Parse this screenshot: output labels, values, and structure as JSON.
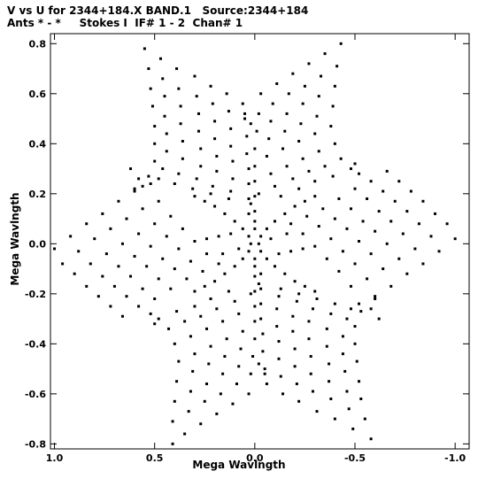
{
  "title_line1": "V vs U for 2344+184.X BAND.1   Source:2344+184",
  "title_line2": "Ants * - *     Stokes I  IF# 1 - 2  Chan# 1",
  "chart_data": {
    "type": "scatter",
    "xlabel": "Mega Wavlngth",
    "ylabel": "Mega Wavlngth",
    "xlim": [
      1.02,
      -1.07
    ],
    "ylim": [
      -0.82,
      0.84
    ],
    "x_reversed": true,
    "xticks": [
      1.0,
      0.5,
      0.0,
      -0.5,
      -1.0
    ],
    "xtick_labels": [
      "1.0",
      "0.5",
      "0.0",
      "-0.5",
      "-1.0"
    ],
    "yticks": [
      0.8,
      0.6,
      0.4,
      0.2,
      0.0,
      -0.2,
      -0.4,
      -0.6,
      -0.8
    ],
    "ytick_labels": [
      "0.8",
      "0.6",
      "0.4",
      "0.2",
      "0.0",
      "-0.2",
      "-0.4",
      "-0.6",
      "-0.8"
    ],
    "grid": false,
    "legend": "none",
    "marker_color": "#000000",
    "point_count_approx": 620,
    "note_pattern": "six-armed star uv-coverage symmetric about origin; tracks at ~0, ±60, ±120 deg; extreme points at (0.55,0.78),(-0.43,0.8),(1.0,-0.02),(-1.0,0.02),(0.41,-0.8),(-0.58,-0.78)",
    "points": [
      [
        0.55,
        0.78
      ],
      [
        0.53,
        0.7
      ],
      [
        0.52,
        0.62
      ],
      [
        0.51,
        0.55
      ],
      [
        0.5,
        0.47
      ],
      [
        0.5,
        0.4
      ],
      [
        0.5,
        0.33
      ],
      [
        0.53,
        0.27
      ],
      [
        0.56,
        0.23
      ],
      [
        0.47,
        0.74
      ],
      [
        0.46,
        0.66
      ],
      [
        0.45,
        0.59
      ],
      [
        0.45,
        0.51
      ],
      [
        0.44,
        0.44
      ],
      [
        0.44,
        0.37
      ],
      [
        0.46,
        0.3
      ],
      [
        0.48,
        0.26
      ],
      [
        0.39,
        0.7
      ],
      [
        0.38,
        0.62
      ],
      [
        0.37,
        0.55
      ],
      [
        0.37,
        0.48
      ],
      [
        0.36,
        0.41
      ],
      [
        0.36,
        0.34
      ],
      [
        0.38,
        0.28
      ],
      [
        0.4,
        0.24
      ],
      [
        0.3,
        0.67
      ],
      [
        0.29,
        0.59
      ],
      [
        0.28,
        0.52
      ],
      [
        0.28,
        0.45
      ],
      [
        0.27,
        0.38
      ],
      [
        0.27,
        0.31
      ],
      [
        0.29,
        0.26
      ],
      [
        0.31,
        0.22
      ],
      [
        0.22,
        0.63
      ],
      [
        0.21,
        0.56
      ],
      [
        0.2,
        0.49
      ],
      [
        0.2,
        0.42
      ],
      [
        0.19,
        0.35
      ],
      [
        0.19,
        0.29
      ],
      [
        0.21,
        0.23
      ],
      [
        0.22,
        0.2
      ],
      [
        0.14,
        0.6
      ],
      [
        0.13,
        0.53
      ],
      [
        0.12,
        0.46
      ],
      [
        0.12,
        0.39
      ],
      [
        0.11,
        0.33
      ],
      [
        0.11,
        0.26
      ],
      [
        0.12,
        0.21
      ],
      [
        0.13,
        0.18
      ],
      [
        0.06,
        0.56
      ],
      [
        0.05,
        0.5
      ],
      [
        0.04,
        0.43
      ],
      [
        0.04,
        0.36
      ],
      [
        0.03,
        0.3
      ],
      [
        0.03,
        0.24
      ],
      [
        0.03,
        0.18
      ],
      [
        0.03,
        0.12
      ],
      [
        -0.43,
        0.8
      ],
      [
        -0.41,
        0.71
      ],
      [
        -0.4,
        0.63
      ],
      [
        -0.39,
        0.55
      ],
      [
        -0.38,
        0.47
      ],
      [
        -0.4,
        0.4
      ],
      [
        -0.43,
        0.34
      ],
      [
        -0.48,
        0.3
      ],
      [
        -0.35,
        0.76
      ],
      [
        -0.33,
        0.67
      ],
      [
        -0.32,
        0.59
      ],
      [
        -0.31,
        0.51
      ],
      [
        -0.3,
        0.44
      ],
      [
        -0.32,
        0.37
      ],
      [
        -0.35,
        0.31
      ],
      [
        -0.39,
        0.27
      ],
      [
        -0.27,
        0.72
      ],
      [
        -0.25,
        0.63
      ],
      [
        -0.24,
        0.56
      ],
      [
        -0.23,
        0.48
      ],
      [
        -0.22,
        0.41
      ],
      [
        -0.24,
        0.34
      ],
      [
        -0.27,
        0.29
      ],
      [
        -0.3,
        0.25
      ],
      [
        -0.19,
        0.68
      ],
      [
        -0.17,
        0.6
      ],
      [
        -0.16,
        0.52
      ],
      [
        -0.15,
        0.45
      ],
      [
        -0.14,
        0.38
      ],
      [
        -0.16,
        0.31
      ],
      [
        -0.19,
        0.26
      ],
      [
        -0.22,
        0.22
      ],
      [
        -0.11,
        0.64
      ],
      [
        -0.09,
        0.56
      ],
      [
        -0.08,
        0.49
      ],
      [
        -0.07,
        0.42
      ],
      [
        -0.06,
        0.35
      ],
      [
        -0.08,
        0.28
      ],
      [
        -0.1,
        0.23
      ],
      [
        -0.13,
        0.19
      ],
      [
        -0.03,
        0.6
      ],
      [
        -0.02,
        0.52
      ],
      [
        -0.01,
        0.45
      ],
      [
        0.0,
        0.38
      ],
      [
        0.0,
        0.31
      ],
      [
        0.0,
        0.25
      ],
      [
        0.0,
        0.19
      ],
      [
        0.0,
        0.13
      ],
      [
        1.0,
        -0.02
      ],
      [
        0.92,
        0.03
      ],
      [
        0.84,
        0.08
      ],
      [
        0.76,
        0.12
      ],
      [
        0.68,
        0.17
      ],
      [
        0.6,
        0.21
      ],
      [
        0.52,
        0.24
      ],
      [
        0.96,
        -0.08
      ],
      [
        0.88,
        -0.03
      ],
      [
        0.8,
        0.02
      ],
      [
        0.72,
        0.06
      ],
      [
        0.64,
        0.1
      ],
      [
        0.56,
        0.14
      ],
      [
        0.48,
        0.17
      ],
      [
        0.9,
        -0.12
      ],
      [
        0.82,
        -0.08
      ],
      [
        0.74,
        -0.04
      ],
      [
        0.66,
        0.0
      ],
      [
        0.58,
        0.04
      ],
      [
        0.5,
        0.08
      ],
      [
        0.42,
        0.11
      ],
      [
        0.84,
        -0.17
      ],
      [
        0.76,
        -0.13
      ],
      [
        0.68,
        -0.09
      ],
      [
        0.6,
        -0.05
      ],
      [
        0.52,
        -0.01
      ],
      [
        0.44,
        0.03
      ],
      [
        0.36,
        0.06
      ],
      [
        0.78,
        -0.21
      ],
      [
        0.7,
        -0.17
      ],
      [
        0.62,
        -0.13
      ],
      [
        0.54,
        -0.09
      ],
      [
        0.46,
        -0.06
      ],
      [
        0.38,
        -0.02
      ],
      [
        0.3,
        0.01
      ],
      [
        0.72,
        -0.25
      ],
      [
        0.64,
        -0.21
      ],
      [
        0.56,
        -0.18
      ],
      [
        0.48,
        -0.14
      ],
      [
        0.4,
        -0.1
      ],
      [
        0.32,
        -0.07
      ],
      [
        0.24,
        -0.04
      ],
      [
        0.66,
        -0.29
      ],
      [
        0.58,
        -0.25
      ],
      [
        0.5,
        -0.22
      ],
      [
        0.42,
        -0.18
      ],
      [
        0.34,
        -0.14
      ],
      [
        0.26,
        -0.11
      ],
      [
        0.18,
        -0.08
      ],
      [
        -1.0,
        0.02
      ],
      [
        -0.92,
        -0.03
      ],
      [
        -0.84,
        -0.08
      ],
      [
        -0.76,
        -0.12
      ],
      [
        -0.68,
        -0.17
      ],
      [
        -0.6,
        -0.21
      ],
      [
        -0.52,
        -0.24
      ],
      [
        -0.96,
        0.08
      ],
      [
        -0.88,
        0.03
      ],
      [
        -0.8,
        -0.02
      ],
      [
        -0.72,
        -0.06
      ],
      [
        -0.64,
        -0.1
      ],
      [
        -0.56,
        -0.14
      ],
      [
        -0.48,
        -0.17
      ],
      [
        -0.9,
        0.12
      ],
      [
        -0.82,
        0.08
      ],
      [
        -0.74,
        0.04
      ],
      [
        -0.66,
        0.0
      ],
      [
        -0.58,
        -0.04
      ],
      [
        -0.5,
        -0.08
      ],
      [
        -0.42,
        -0.11
      ],
      [
        -0.84,
        0.17
      ],
      [
        -0.76,
        0.13
      ],
      [
        -0.68,
        0.09
      ],
      [
        -0.6,
        0.05
      ],
      [
        -0.52,
        0.01
      ],
      [
        -0.44,
        -0.03
      ],
      [
        -0.36,
        -0.06
      ],
      [
        -0.78,
        0.21
      ],
      [
        -0.7,
        0.17
      ],
      [
        -0.62,
        0.13
      ],
      [
        -0.54,
        0.09
      ],
      [
        -0.46,
        0.06
      ],
      [
        -0.38,
        0.02
      ],
      [
        -0.3,
        -0.01
      ],
      [
        -0.72,
        0.25
      ],
      [
        -0.64,
        0.21
      ],
      [
        -0.56,
        0.18
      ],
      [
        -0.48,
        0.14
      ],
      [
        -0.4,
        0.1
      ],
      [
        -0.32,
        0.07
      ],
      [
        -0.24,
        0.04
      ],
      [
        -0.66,
        0.29
      ],
      [
        -0.58,
        0.25
      ],
      [
        -0.5,
        0.22
      ],
      [
        -0.42,
        0.18
      ],
      [
        -0.34,
        0.14
      ],
      [
        -0.26,
        0.11
      ],
      [
        -0.18,
        0.08
      ],
      [
        0.41,
        -0.8
      ],
      [
        0.41,
        -0.71
      ],
      [
        0.4,
        -0.63
      ],
      [
        0.39,
        -0.55
      ],
      [
        0.38,
        -0.47
      ],
      [
        0.4,
        -0.4
      ],
      [
        0.43,
        -0.34
      ],
      [
        0.48,
        -0.3
      ],
      [
        0.35,
        -0.76
      ],
      [
        0.33,
        -0.67
      ],
      [
        0.32,
        -0.59
      ],
      [
        0.31,
        -0.51
      ],
      [
        0.3,
        -0.44
      ],
      [
        0.32,
        -0.37
      ],
      [
        0.35,
        -0.31
      ],
      [
        0.39,
        -0.27
      ],
      [
        0.27,
        -0.72
      ],
      [
        0.25,
        -0.63
      ],
      [
        0.24,
        -0.56
      ],
      [
        0.23,
        -0.48
      ],
      [
        0.22,
        -0.41
      ],
      [
        0.24,
        -0.34
      ],
      [
        0.27,
        -0.29
      ],
      [
        0.3,
        -0.25
      ],
      [
        0.19,
        -0.68
      ],
      [
        0.17,
        -0.6
      ],
      [
        0.16,
        -0.52
      ],
      [
        0.15,
        -0.45
      ],
      [
        0.14,
        -0.38
      ],
      [
        0.16,
        -0.31
      ],
      [
        0.19,
        -0.26
      ],
      [
        0.22,
        -0.22
      ],
      [
        0.11,
        -0.64
      ],
      [
        0.09,
        -0.56
      ],
      [
        0.08,
        -0.49
      ],
      [
        0.07,
        -0.42
      ],
      [
        0.06,
        -0.35
      ],
      [
        0.08,
        -0.28
      ],
      [
        0.1,
        -0.23
      ],
      [
        0.13,
        -0.19
      ],
      [
        0.03,
        -0.6
      ],
      [
        0.02,
        -0.52
      ],
      [
        0.01,
        -0.45
      ],
      [
        0.0,
        -0.38
      ],
      [
        0.0,
        -0.31
      ],
      [
        0.0,
        -0.25
      ],
      [
        0.0,
        -0.19
      ],
      [
        0.0,
        -0.13
      ],
      [
        -0.58,
        -0.78
      ],
      [
        -0.55,
        -0.7
      ],
      [
        -0.53,
        -0.62
      ],
      [
        -0.52,
        -0.55
      ],
      [
        -0.51,
        -0.47
      ],
      [
        -0.5,
        -0.4
      ],
      [
        -0.5,
        -0.33
      ],
      [
        -0.53,
        -0.27
      ],
      [
        -0.49,
        -0.74
      ],
      [
        -0.47,
        -0.66
      ],
      [
        -0.46,
        -0.59
      ],
      [
        -0.45,
        -0.51
      ],
      [
        -0.44,
        -0.44
      ],
      [
        -0.44,
        -0.37
      ],
      [
        -0.46,
        -0.3
      ],
      [
        -0.48,
        -0.26
      ],
      [
        -0.4,
        -0.7
      ],
      [
        -0.38,
        -0.62
      ],
      [
        -0.37,
        -0.55
      ],
      [
        -0.37,
        -0.48
      ],
      [
        -0.36,
        -0.41
      ],
      [
        -0.36,
        -0.34
      ],
      [
        -0.38,
        -0.28
      ],
      [
        -0.4,
        -0.24
      ],
      [
        -0.31,
        -0.67
      ],
      [
        -0.29,
        -0.59
      ],
      [
        -0.28,
        -0.52
      ],
      [
        -0.28,
        -0.45
      ],
      [
        -0.27,
        -0.38
      ],
      [
        -0.27,
        -0.31
      ],
      [
        -0.29,
        -0.26
      ],
      [
        -0.31,
        -0.22
      ],
      [
        -0.22,
        -0.63
      ],
      [
        -0.21,
        -0.56
      ],
      [
        -0.2,
        -0.49
      ],
      [
        -0.2,
        -0.42
      ],
      [
        -0.19,
        -0.35
      ],
      [
        -0.19,
        -0.29
      ],
      [
        -0.21,
        -0.23
      ],
      [
        -0.22,
        -0.2
      ],
      [
        -0.14,
        -0.6
      ],
      [
        -0.13,
        -0.53
      ],
      [
        -0.12,
        -0.46
      ],
      [
        -0.12,
        -0.39
      ],
      [
        -0.11,
        -0.33
      ],
      [
        -0.11,
        -0.26
      ],
      [
        -0.12,
        -0.21
      ],
      [
        -0.13,
        -0.18
      ],
      [
        -0.06,
        -0.56
      ],
      [
        -0.05,
        -0.5
      ],
      [
        -0.04,
        -0.43
      ],
      [
        -0.04,
        -0.36
      ],
      [
        -0.03,
        -0.3
      ],
      [
        -0.03,
        -0.24
      ],
      [
        -0.03,
        -0.18
      ],
      [
        -0.03,
        -0.12
      ],
      [
        0.3,
        0.19
      ],
      [
        0.25,
        0.17
      ],
      [
        0.2,
        0.15
      ],
      [
        0.15,
        0.12
      ],
      [
        0.1,
        0.09
      ],
      [
        0.06,
        0.06
      ],
      [
        0.03,
        0.03
      ],
      [
        -0.3,
        -0.19
      ],
      [
        -0.25,
        -0.17
      ],
      [
        -0.2,
        -0.15
      ],
      [
        -0.15,
        -0.12
      ],
      [
        -0.1,
        -0.09
      ],
      [
        -0.06,
        -0.06
      ],
      [
        -0.03,
        -0.03
      ],
      [
        -0.3,
        0.19
      ],
      [
        -0.25,
        0.17
      ],
      [
        -0.2,
        0.15
      ],
      [
        -0.15,
        0.12
      ],
      [
        -0.1,
        0.09
      ],
      [
        -0.06,
        0.06
      ],
      [
        -0.03,
        0.03
      ],
      [
        0.3,
        -0.19
      ],
      [
        0.25,
        -0.17
      ],
      [
        0.2,
        -0.15
      ],
      [
        0.15,
        -0.12
      ],
      [
        0.1,
        -0.09
      ],
      [
        0.06,
        -0.06
      ],
      [
        0.03,
        -0.03
      ],
      [
        0.0,
        0.06
      ],
      [
        0.0,
        0.09
      ],
      [
        0.0,
        -0.06
      ],
      [
        0.0,
        -0.09
      ],
      [
        0.02,
        0.0
      ],
      [
        -0.02,
        0.0
      ],
      [
        0.12,
        0.04
      ],
      [
        0.18,
        0.03
      ],
      [
        0.24,
        0.02
      ],
      [
        -0.12,
        -0.04
      ],
      [
        -0.18,
        -0.03
      ],
      [
        -0.24,
        -0.02
      ],
      [
        0.08,
        -0.02
      ],
      [
        -0.08,
        0.02
      ],
      [
        0.16,
        -0.04
      ],
      [
        -0.16,
        0.04
      ],
      [
        0.58,
        0.26
      ],
      [
        0.62,
        0.3
      ],
      [
        0.6,
        0.22
      ],
      [
        -0.58,
        -0.26
      ],
      [
        -0.62,
        -0.3
      ],
      [
        -0.6,
        -0.22
      ],
      [
        -0.5,
        0.32
      ],
      [
        -0.52,
        0.28
      ],
      [
        0.5,
        -0.32
      ],
      [
        0.52,
        -0.28
      ],
      [
        0.05,
        0.52
      ],
      [
        0.02,
        0.48
      ],
      [
        -0.02,
        0.2
      ],
      [
        0.02,
        0.16
      ],
      [
        -0.05,
        -0.52
      ],
      [
        -0.02,
        -0.48
      ],
      [
        0.02,
        -0.2
      ],
      [
        -0.02,
        -0.16
      ]
    ]
  }
}
